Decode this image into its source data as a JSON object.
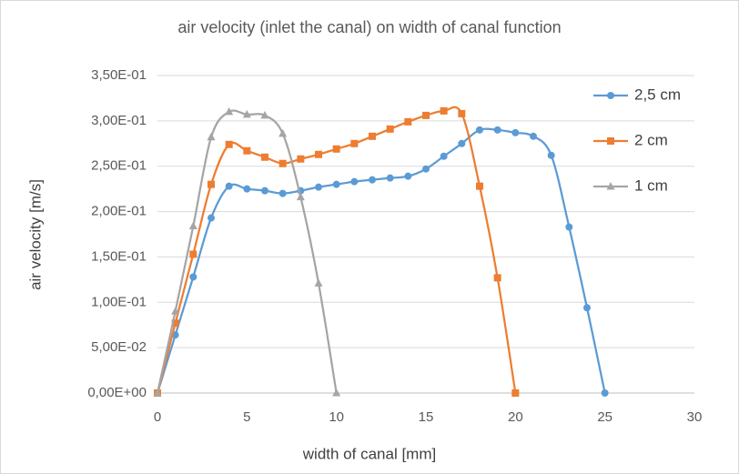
{
  "chart_data": {
    "type": "scatter-smooth",
    "title": "air velocity (inlet the canal) on width of canal function",
    "x_label": "width of canal [mm]",
    "y_label": "air velocity [m/s]",
    "xlim": [
      0,
      30
    ],
    "xticks": [
      0,
      5,
      10,
      15,
      20,
      25,
      30
    ],
    "ylim": [
      0,
      0.35
    ],
    "yticks": [
      {
        "value": 0,
        "label": "0,00E+00"
      },
      {
        "value": 0.05,
        "label": "5,00E-02"
      },
      {
        "value": 0.1,
        "label": "1,00E-01"
      },
      {
        "value": 0.15,
        "label": "1,50E-01"
      },
      {
        "value": 0.2,
        "label": "2,00E-01"
      },
      {
        "value": 0.25,
        "label": "2,50E-01"
      },
      {
        "value": 0.3,
        "label": "3,00E-01"
      },
      {
        "value": 0.35,
        "label": "3,50E-01"
      }
    ],
    "grid": true,
    "legend": "right",
    "series": [
      {
        "name": "2,5 cm",
        "color": "#5b9bd5",
        "marker": "circle",
        "x": [
          0,
          1,
          2,
          3,
          4,
          5,
          6,
          7,
          8,
          9,
          10,
          11,
          12,
          13,
          14,
          15,
          16,
          17,
          18,
          19,
          20,
          21,
          22,
          23,
          24,
          25
        ],
        "values": [
          0,
          0.064,
          0.128,
          0.193,
          0.228,
          0.225,
          0.223,
          0.22,
          0.223,
          0.227,
          0.23,
          0.233,
          0.235,
          0.237,
          0.239,
          0.247,
          0.261,
          0.275,
          0.29,
          0.29,
          0.287,
          0.283,
          0.262,
          0.183,
          0.094,
          0
        ]
      },
      {
        "name": "2 cm",
        "color": "#ed7d31",
        "marker": "square",
        "x": [
          0,
          1,
          2,
          3,
          4,
          5,
          6,
          7,
          8,
          9,
          10,
          11,
          12,
          13,
          14,
          15,
          16,
          17,
          18,
          19,
          20
        ],
        "values": [
          0,
          0.077,
          0.153,
          0.23,
          0.274,
          0.267,
          0.26,
          0.253,
          0.258,
          0.263,
          0.269,
          0.275,
          0.283,
          0.291,
          0.299,
          0.306,
          0.311,
          0.308,
          0.228,
          0.127,
          0
        ]
      },
      {
        "name": "1 cm",
        "color": "#a5a5a5",
        "marker": "triangle",
        "x": [
          0,
          1,
          2,
          3,
          4,
          5,
          6,
          7,
          8,
          9,
          10
        ],
        "values": [
          0,
          0.09,
          0.184,
          0.282,
          0.31,
          0.307,
          0.306,
          0.286,
          0.216,
          0.121,
          0
        ]
      }
    ]
  }
}
